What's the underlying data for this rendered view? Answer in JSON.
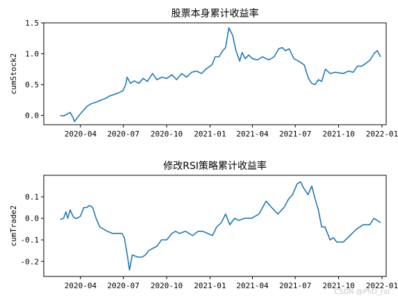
{
  "chart_data": [
    {
      "type": "line",
      "title": "股票本身累计收益率",
      "xlabel": "",
      "ylabel": "cumStock2",
      "ylim": [
        -0.15,
        1.5
      ],
      "xlim": [
        "2020-01-14",
        "2022-01-10"
      ],
      "grid": false,
      "color": "#1f77b4",
      "xticks": [
        "2020-04",
        "2020-07",
        "2020-10",
        "2021-01",
        "2021-04",
        "2021-07",
        "2021-10",
        "2022-01"
      ],
      "yticks": [
        0.0,
        0.5,
        1.0,
        1.5
      ],
      "ytick_labels": [
        "0.0",
        "0.5",
        "1.0",
        "1.5"
      ],
      "series": [
        {
          "x": [
            "2020-02-18",
            "2020-02-25",
            "2020-03-03",
            "2020-03-10",
            "2020-03-16",
            "2020-03-19",
            "2020-03-24",
            "2020-03-31",
            "2020-04-07",
            "2020-04-15",
            "2020-04-24",
            "2020-05-06",
            "2020-05-15",
            "2020-05-25",
            "2020-06-03",
            "2020-06-12",
            "2020-06-22",
            "2020-06-30",
            "2020-07-06",
            "2020-07-09",
            "2020-07-16",
            "2020-07-24",
            "2020-08-03",
            "2020-08-12",
            "2020-08-21",
            "2020-09-01",
            "2020-09-10",
            "2020-09-21",
            "2020-10-01",
            "2020-10-12",
            "2020-10-22",
            "2020-11-02",
            "2020-11-12",
            "2020-11-23",
            "2020-12-03",
            "2020-12-14",
            "2020-12-23",
            "2021-01-05",
            "2021-01-12",
            "2021-01-20",
            "2021-01-28",
            "2021-02-03",
            "2021-02-10",
            "2021-02-18",
            "2021-02-25",
            "2021-03-05",
            "2021-03-10",
            "2021-03-17",
            "2021-03-24",
            "2021-04-01",
            "2021-04-12",
            "2021-04-22",
            "2021-05-06",
            "2021-05-17",
            "2021-05-27",
            "2021-06-03",
            "2021-06-10",
            "2021-06-18",
            "2021-06-28",
            "2021-07-08",
            "2021-07-20",
            "2021-07-29",
            "2021-08-05",
            "2021-08-12",
            "2021-08-19",
            "2021-08-26",
            "2021-09-03",
            "2021-09-13",
            "2021-09-24",
            "2021-10-11",
            "2021-10-22",
            "2021-11-01",
            "2021-11-10",
            "2021-11-19",
            "2021-11-29",
            "2021-12-07",
            "2021-12-15",
            "2021-12-22",
            "2021-12-29"
          ],
          "y": [
            0.0,
            -0.01,
            0.02,
            0.05,
            -0.03,
            -0.1,
            -0.05,
            0.02,
            0.08,
            0.15,
            0.19,
            0.22,
            0.25,
            0.28,
            0.32,
            0.34,
            0.37,
            0.4,
            0.5,
            0.62,
            0.52,
            0.56,
            0.52,
            0.6,
            0.55,
            0.68,
            0.58,
            0.62,
            0.6,
            0.66,
            0.58,
            0.68,
            0.62,
            0.7,
            0.72,
            0.68,
            0.75,
            0.82,
            0.95,
            0.95,
            1.05,
            1.1,
            1.42,
            1.3,
            1.05,
            0.88,
            1.02,
            0.92,
            0.98,
            0.92,
            0.9,
            0.95,
            0.9,
            0.95,
            1.08,
            1.1,
            1.05,
            1.08,
            0.92,
            0.88,
            0.82,
            0.6,
            0.52,
            0.5,
            0.58,
            0.55,
            0.75,
            0.68,
            0.7,
            0.68,
            0.72,
            0.7,
            0.8,
            0.8,
            0.85,
            0.9,
            1.0,
            1.05,
            0.95
          ]
        }
      ]
    },
    {
      "type": "line",
      "title": "修改RSI策略累计收益率",
      "xlabel": "",
      "ylabel": "cumTrade2",
      "ylim": [
        -0.27,
        0.2
      ],
      "xlim": [
        "2020-01-14",
        "2022-01-10"
      ],
      "grid": false,
      "color": "#1f77b4",
      "xticks": [
        "2020-04",
        "2020-07",
        "2020-10",
        "2021-01",
        "2021-04",
        "2021-07",
        "2021-10",
        "2022-01"
      ],
      "yticks": [
        -0.2,
        -0.1,
        0.0,
        0.1
      ],
      "ytick_labels": [
        "-0.2",
        "-0.1",
        "0.0",
        "0.1"
      ],
      "series": [
        {
          "x": [
            "2020-02-18",
            "2020-02-25",
            "2020-03-01",
            "2020-03-05",
            "2020-03-10",
            "2020-03-16",
            "2020-03-20",
            "2020-03-25",
            "2020-04-01",
            "2020-04-08",
            "2020-04-14",
            "2020-04-20",
            "2020-04-27",
            "2020-05-04",
            "2020-05-12",
            "2020-05-20",
            "2020-05-28",
            "2020-06-08",
            "2020-06-18",
            "2020-06-28",
            "2020-07-03",
            "2020-07-07",
            "2020-07-10",
            "2020-07-14",
            "2020-07-20",
            "2020-07-31",
            "2020-08-10",
            "2020-08-17",
            "2020-08-24",
            "2020-09-01",
            "2020-09-10",
            "2020-09-20",
            "2020-10-01",
            "2020-10-12",
            "2020-10-20",
            "2020-10-28",
            "2020-11-10",
            "2020-11-25",
            "2020-12-07",
            "2020-12-16",
            "2020-12-27",
            "2021-01-06",
            "2021-01-15",
            "2021-01-25",
            "2021-02-03",
            "2021-02-12",
            "2021-02-22",
            "2021-03-03",
            "2021-03-15",
            "2021-03-30",
            "2021-04-15",
            "2021-04-30",
            "2021-05-12",
            "2021-05-25",
            "2021-06-07",
            "2021-06-17",
            "2021-06-25",
            "2021-07-05",
            "2021-07-12",
            "2021-07-19",
            "2021-07-28",
            "2021-08-05",
            "2021-08-12",
            "2021-08-19",
            "2021-08-26",
            "2021-09-02",
            "2021-09-13",
            "2021-09-20",
            "2021-09-27",
            "2021-10-11",
            "2021-10-25",
            "2021-11-08",
            "2021-11-22",
            "2021-12-06",
            "2021-12-15",
            "2021-12-22",
            "2021-12-29"
          ],
          "y": [
            -0.005,
            0.0,
            0.03,
            0.0,
            0.04,
            0.01,
            0.0,
            0.0,
            0.01,
            0.05,
            0.05,
            0.06,
            0.05,
            0.0,
            -0.04,
            -0.05,
            -0.06,
            -0.07,
            -0.07,
            -0.07,
            -0.09,
            -0.14,
            -0.18,
            -0.24,
            -0.17,
            -0.18,
            -0.18,
            -0.17,
            -0.15,
            -0.14,
            -0.13,
            -0.1,
            -0.1,
            -0.07,
            -0.06,
            -0.07,
            -0.06,
            -0.08,
            -0.06,
            -0.06,
            -0.07,
            -0.08,
            -0.04,
            -0.02,
            0.02,
            -0.03,
            0.0,
            -0.01,
            0.0,
            0.0,
            0.02,
            0.08,
            0.05,
            0.02,
            0.05,
            0.09,
            0.11,
            0.16,
            0.17,
            0.14,
            0.11,
            0.15,
            0.09,
            0.04,
            -0.04,
            -0.04,
            -0.1,
            -0.09,
            -0.11,
            -0.11,
            -0.08,
            -0.05,
            -0.03,
            -0.03,
            0.0,
            -0.01,
            -0.02
          ]
        }
      ]
    }
  ],
  "watermark": "CSDN @PhD_rat"
}
